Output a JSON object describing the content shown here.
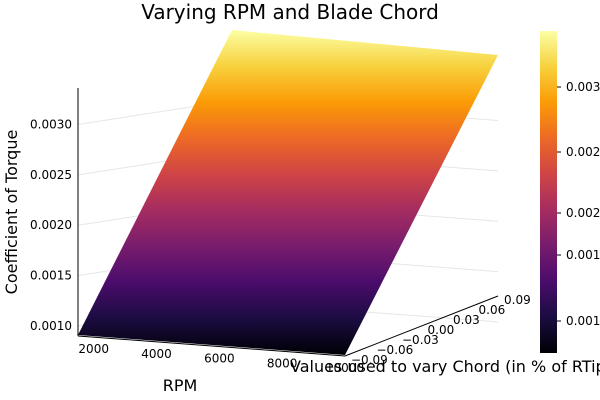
{
  "chart_data": {
    "type": "surface",
    "title": "Varying RPM and Blade Chord",
    "xlabel": "RPM",
    "ylabel": "Values used to vary Chord (in % of RTip)",
    "zlabel": "Coefficient of Torque",
    "x_ticks": [
      "2000",
      "4000",
      "6000",
      "8000",
      "10000"
    ],
    "y_ticks": [
      "−0.09",
      "−0.06",
      "−0.03",
      "0.00",
      "0.03",
      "0.06",
      "0.09"
    ],
    "z_ticks": [
      "0.0010",
      "0.0015",
      "0.0020",
      "0.0025",
      "0.0030"
    ],
    "colorbar_ticks": [
      "0.001",
      "0.001",
      "0.002",
      "0.002",
      "0.003"
    ],
    "x_range": [
      1500,
      10000
    ],
    "y_range": [
      -0.09,
      0.09
    ],
    "z_range": [
      0.0009,
      0.0038
    ],
    "grid": true,
    "colormap": "inferno",
    "colormap_stops": [
      "#000004",
      "#1b0c41",
      "#4a0c6b",
      "#781c6d",
      "#a52c60",
      "#cf4446",
      "#ed6925",
      "#fb9b06",
      "#f7d13d",
      "#fcffa4"
    ]
  }
}
